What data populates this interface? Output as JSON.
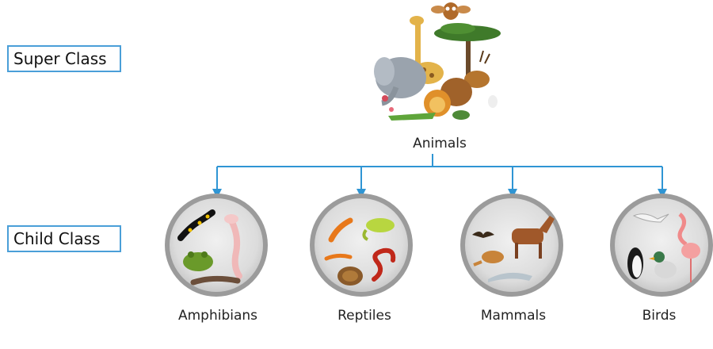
{
  "diagram": {
    "super_class_label": "Super Class",
    "child_class_label": "Child Class",
    "root": {
      "label": "Animals",
      "icon": "animals-group-icon"
    },
    "children": [
      {
        "label": "Amphibians",
        "icons": [
          "salamander-icon",
          "axolotl-icon",
          "frog-icon",
          "newt-icon"
        ]
      },
      {
        "label": "Reptiles",
        "icons": [
          "gecko-icon",
          "chameleon-icon",
          "lizard-icon",
          "turtle-icon",
          "snake-icon"
        ]
      },
      {
        "label": "Mammals",
        "icons": [
          "bat-icon",
          "horse-icon",
          "kangaroo-icon",
          "dolphin-icon"
        ]
      },
      {
        "label": "Birds",
        "icons": [
          "seagull-icon",
          "flamingo-icon",
          "penguin-icon",
          "duck-icon"
        ]
      }
    ],
    "colors": {
      "connector": "#2f95d4",
      "label_border": "#4a9fd8",
      "circle_fill": "#d9d9d9",
      "circle_ring": "#9b9b9b"
    }
  }
}
